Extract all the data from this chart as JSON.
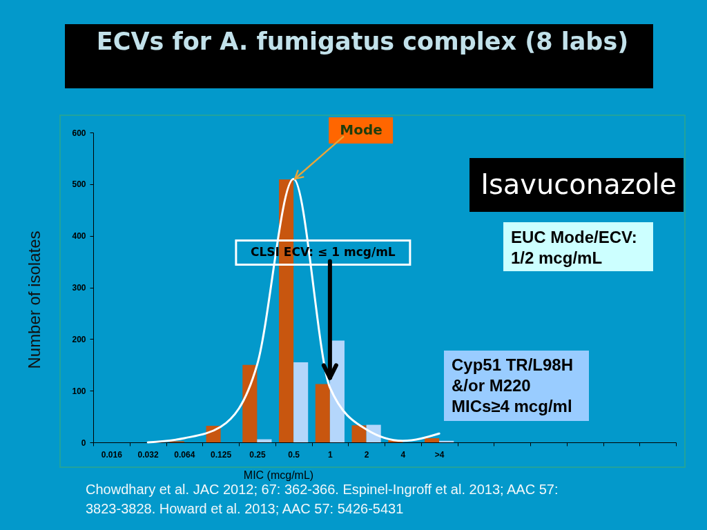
{
  "chart_data": {
    "type": "bar",
    "title": "ECVs for A. fumigatus complex (8 labs)",
    "xlabel": "MIC (mcg/mL)",
    "ylabel": "Number of isolates",
    "categories": [
      "0.016",
      "0.032",
      "0.064",
      "0.125",
      "0.25",
      "0.5",
      "1",
      "2",
      "4",
      ">4",
      null,
      null,
      null,
      null,
      null,
      null
    ],
    "series": [
      {
        "color": "#c8560f",
        "values": [
          null,
          null,
          2,
          32,
          150,
          509,
          113,
          33,
          4,
          8,
          null,
          null,
          null,
          null,
          null,
          null
        ]
      },
      {
        "color": "#b4d6fb",
        "values": [
          null,
          null,
          null,
          null,
          6,
          155,
          197,
          34,
          null,
          3,
          null,
          null,
          null,
          null,
          null,
          null
        ]
      },
      {
        "type": "line",
        "color": "#ffffff",
        "values": [
          null,
          0,
          8,
          30,
          150,
          510,
          106,
          25,
          3,
          17,
          null,
          null,
          null,
          null,
          null,
          null
        ]
      }
    ],
    "ylim": [
      0,
      600
    ],
    "yticks": [
      0,
      100,
      200,
      300,
      400,
      500,
      600
    ],
    "grid": false,
    "annotations": [
      {
        "text": "Mode",
        "x": "0.5",
        "y": 509
      },
      {
        "text": "CLSI ECV: ≤ 1 mcg/mL",
        "x": "1",
        "y": 125
      },
      "Isavuconazole",
      "EUC Mode/ECV: 1/2 mcg/mL",
      "Cyp51 TR/L98H &/or M220 MICs≥4 mcg/ml",
      "Chowdhary et al. JAC 2012; 67: 362-366. Espinel-Ingroff et al. 2013; AAC 57: 3823-3828. Howard et al. 2013; AAC 57: 5426-5431"
    ]
  }
}
